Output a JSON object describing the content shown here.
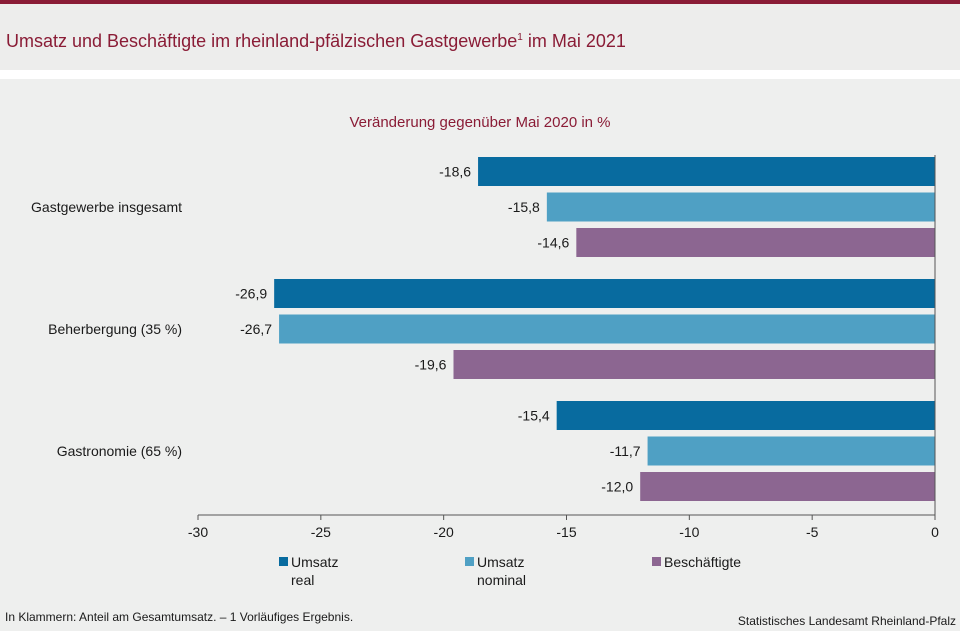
{
  "header": {
    "title": "Umsatz und Beschäftigte im rheinland-pfälzischen Gastgewerbe",
    "title_sup": "1",
    "title_suffix": " im Mai 2021"
  },
  "chart_data": {
    "type": "bar",
    "orientation": "horizontal",
    "subtitle": "Veränderung gegenüber Mai 2020 in %",
    "categories": [
      "Gastgewerbe insgesamt",
      "Beherbergung (35 %)",
      "Gastronomie (65 %)"
    ],
    "series": [
      {
        "name_line1": "Umsatz",
        "name_line2": "real",
        "color": "#086b9f",
        "values": [
          -18.6,
          -26.9,
          -15.4
        ],
        "labels": [
          "-18,6",
          "-26,9",
          "-15,4"
        ]
      },
      {
        "name_line1": "Umsatz",
        "name_line2": "nominal",
        "color": "#4fa0c4",
        "values": [
          -15.8,
          -26.7,
          -11.7
        ],
        "labels": [
          "-15,8",
          "-26,7",
          "-11,7"
        ]
      },
      {
        "name_line1": "Beschäftigte",
        "name_line2": "",
        "color": "#8c6691",
        "values": [
          -14.6,
          -19.6,
          -12.0
        ],
        "labels": [
          "-14,6",
          "-19,6",
          "-12,0"
        ]
      }
    ],
    "xlim": [
      -30,
      0
    ],
    "x_ticks": [
      -30,
      -25,
      -20,
      -15,
      -10,
      -5,
      0
    ],
    "x_tick_labels": [
      "-30",
      "-25",
      "-20",
      "-15",
      "-10",
      "-5",
      "0"
    ],
    "grid": false,
    "legend_position": "bottom"
  },
  "footer": {
    "note": "In Klammern: Anteil am Gesamtumsatz. – 1 Vorläufiges Ergebnis.",
    "source": "Statistisches Landesamt Rheinland-Pfalz"
  }
}
